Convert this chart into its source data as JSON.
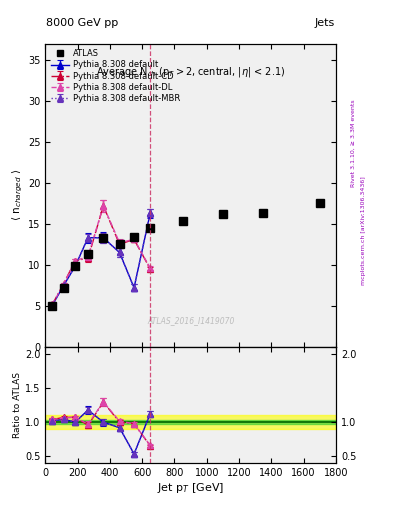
{
  "title_top": "8000 GeV pp",
  "title_right": "Jets",
  "plot_title": "Average N",
  "plot_title_sub": "ch",
  "plot_title_rest": " (p",
  "watermark": "ATLAS_2016_I1419070",
  "right_label": "mcplots.cern.ch [arXiv:1306.3436]",
  "right_label2": "Rivet 3.1.10, ≥ 3.3M events",
  "xlabel": "Jet p$_T$ [GeV]",
  "ylabel_main": "⟨ n$_{charged}$ ⟩",
  "ylabel_ratio": "Ratio to ATLAS",
  "vline_x": 650,
  "atlas_x": [
    45,
    115,
    185,
    265,
    360,
    460,
    550,
    650,
    850,
    1100,
    1350,
    1700
  ],
  "atlas_y": [
    5.0,
    7.2,
    9.8,
    11.3,
    13.3,
    12.5,
    13.4,
    14.5,
    15.3,
    16.2,
    16.3,
    17.5
  ],
  "p_def_x": [
    45,
    115,
    185,
    265,
    360,
    460,
    550,
    650
  ],
  "p_def_y": [
    5.1,
    7.5,
    9.8,
    13.3,
    13.3,
    11.5,
    7.2,
    16.3
  ],
  "p_def_yerr": [
    0.12,
    0.12,
    0.25,
    0.6,
    0.7,
    0.55,
    0.45,
    0.55
  ],
  "p_cd_x": [
    45,
    115,
    185,
    265,
    360,
    460,
    550,
    650
  ],
  "p_cd_y": [
    5.2,
    7.7,
    10.5,
    10.8,
    17.2,
    12.5,
    13.1,
    9.5
  ],
  "p_cd_yerr": [
    0.1,
    0.1,
    0.25,
    0.5,
    0.75,
    0.45,
    0.32,
    0.28
  ],
  "p_dl_x": [
    45,
    115,
    185,
    265,
    360,
    460,
    550,
    650
  ],
  "p_dl_y": [
    5.2,
    7.65,
    10.5,
    11.0,
    17.2,
    12.7,
    13.1,
    9.6
  ],
  "p_dl_yerr": [
    0.1,
    0.1,
    0.25,
    0.5,
    0.75,
    0.45,
    0.32,
    0.28
  ],
  "p_mbr_x": [
    45,
    115,
    185,
    265,
    360,
    460,
    550,
    650
  ],
  "p_mbr_y": [
    5.1,
    7.5,
    9.8,
    13.3,
    13.3,
    11.5,
    7.2,
    16.3
  ],
  "p_mbr_yerr": [
    0.1,
    0.1,
    0.2,
    0.5,
    0.6,
    0.5,
    0.4,
    0.5
  ],
  "xlim": [
    0,
    1800
  ],
  "ylim_main": [
    0,
    37
  ],
  "ylim_ratio": [
    0.4,
    2.1
  ],
  "yticks_main": [
    0,
    5,
    10,
    15,
    20,
    25,
    30,
    35
  ],
  "yticks_ratio": [
    0.5,
    1.0,
    1.5,
    2.0
  ],
  "color_atlas": "#000000",
  "color_default": "#0000cc",
  "color_cd": "#cc0033",
  "color_dl": "#dd44aa",
  "color_mbr": "#6633bb",
  "vline_color": "#cc3366",
  "bg_color": "#f0f0f0",
  "green_band": [
    0.97,
    1.03
  ],
  "yellow_band": [
    0.9,
    1.1
  ]
}
